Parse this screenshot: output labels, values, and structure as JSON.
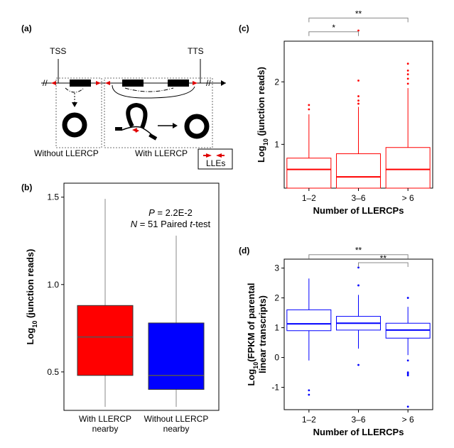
{
  "panels": {
    "a": "(a)",
    "b": "(b)",
    "c": "(c)",
    "d": "(d)"
  },
  "diagram": {
    "tss": "TSS",
    "tts": "TTS",
    "without_label": "Without LLERCP",
    "with_label": "With LLERCP",
    "legend_label": "LLEs",
    "break_mark": "//"
  },
  "chart_data": [
    {
      "type": "box",
      "panel": "b",
      "ylabel_main": "Log",
      "ylabel_sub": "10",
      "ylabel_rest": " (junction reads)",
      "ylim": [
        0.28,
        1.58
      ],
      "yticks": [
        "0.5",
        "1.0",
        "1.5"
      ],
      "categories": [
        "With LLERCP\nnearby",
        "Without LLERCP\nnearby"
      ],
      "category_lines": [
        [
          "With LLERCP",
          "nearby"
        ],
        [
          "Without LLERCP",
          "nearby"
        ]
      ],
      "boxes": [
        {
          "whisker_low": 0.3,
          "q1": 0.48,
          "median": 0.7,
          "q3": 0.88,
          "whisker_high": 1.49,
          "color": "#ff0000"
        },
        {
          "whisker_low": 0.3,
          "q1": 0.4,
          "median": 0.48,
          "q3": 0.78,
          "whisker_high": 1.28,
          "color": "#0000ff"
        }
      ],
      "annotation_p": "P = 2.2E-2",
      "annotation_p_var": "P",
      "annotation_p_rest": " = 2.2E-2",
      "annotation_n_var": "N",
      "annotation_n_rest": " = 51 Paired ",
      "annotation_t_var": "t",
      "annotation_t_rest": "-test"
    },
    {
      "type": "box",
      "panel": "c",
      "ylabel_main": "Log",
      "ylabel_sub": "10",
      "ylabel_rest": " (junction reads)",
      "xlabel": "Number of LLERCPs",
      "ylim": [
        0.3,
        2.65
      ],
      "yticks": [
        "1",
        "2"
      ],
      "categories": [
        "1–2",
        "3–6",
        "> 6"
      ],
      "color": "#ff0000",
      "boxes": [
        {
          "whisker_low": 0.3,
          "q1": 0.3,
          "median": 0.6,
          "q3": 0.78,
          "whisker_high": 1.48,
          "outliers": [
            1.56,
            1.63
          ]
        },
        {
          "whisker_low": 0.3,
          "q1": 0.3,
          "median": 0.48,
          "q3": 0.85,
          "whisker_high": 1.6,
          "outliers": [
            1.65,
            1.7,
            1.77,
            2.02,
            2.82
          ]
        },
        {
          "whisker_low": 0.3,
          "q1": 0.3,
          "median": 0.6,
          "q3": 0.95,
          "whisker_high": 1.9,
          "outliers": [
            1.97,
            2.05,
            2.12,
            2.18,
            2.29
          ]
        }
      ],
      "significance": [
        {
          "from": 0,
          "to": 1,
          "label": "*",
          "level": 2.8
        },
        {
          "from": 0,
          "to": 2,
          "label": "**",
          "level": 3.02
        }
      ]
    },
    {
      "type": "box",
      "panel": "d",
      "ylabel_line1_main": "Log",
      "ylabel_line1_sub": "10",
      "ylabel_line1_rest": "(FPKM of parental",
      "ylabel_line2": "linear transcripts)",
      "xlabel": "Number of LLERCPs",
      "ylim": [
        -1.75,
        3.3
      ],
      "yticks": [
        "-1",
        "0",
        "1",
        "2",
        "3"
      ],
      "categories": [
        "1–2",
        "3–6",
        "> 6"
      ],
      "color": "#0000ff",
      "boxes": [
        {
          "whisker_low": -0.1,
          "q1": 0.9,
          "median": 1.13,
          "q3": 1.6,
          "whisker_high": 2.65,
          "outliers": [
            -1.1,
            -1.25
          ]
        },
        {
          "whisker_low": 0.3,
          "q1": 0.92,
          "median": 1.15,
          "q3": 1.38,
          "whisker_high": 2.1,
          "outliers": [
            2.42,
            3.02,
            -0.25
          ]
        },
        {
          "whisker_low": 0.08,
          "q1": 0.65,
          "median": 0.92,
          "q3": 1.15,
          "whisker_high": 1.7,
          "outliers": [
            2.0,
            -0.1,
            -0.5,
            -0.55,
            -0.6,
            -1.65
          ]
        }
      ],
      "significance": [
        {
          "from": 0,
          "to": 2,
          "label": "**",
          "level": 3.45
        },
        {
          "from": 1,
          "to": 2,
          "label": "**",
          "level": 3.18
        }
      ]
    }
  ]
}
